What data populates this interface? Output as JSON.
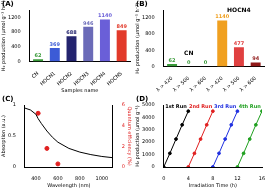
{
  "chart_data": [
    {
      "panel": "(A)",
      "type": "bar",
      "categories": [
        "CN",
        "HOCN1",
        "HOCN2",
        "HOCN3",
        "HOCN4",
        "HOCN5"
      ],
      "values": [
        62,
        369,
        688,
        946,
        1140,
        849
      ],
      "colors": [
        "#3a9a3a",
        "#3c5bd6",
        "#23236e",
        "#6b6bb8",
        "#6a5fd8",
        "#e23a2a"
      ],
      "data_labels": true,
      "grid": false,
      "x_label": "Samples name",
      "y_label": "H₂ production (μmol g⁻¹ h⁻¹)",
      "ylim": [
        0,
        1400
      ],
      "yticks": [
        0,
        400,
        800,
        1200
      ]
    },
    {
      "panel": "(B)",
      "type": "bar",
      "categories": [
        "λ > 420",
        "λ > 500",
        "λ > 600",
        "λ > 420",
        "λ > 500",
        "λ > 600"
      ],
      "values": [
        62,
        0,
        0,
        1140,
        477,
        94
      ],
      "colors": [
        "#3a9a3a",
        "#3a9a3a",
        "#3a9a3a",
        "#f0a020",
        "#e04040",
        "#901818"
      ],
      "annotations": [
        "CN",
        "HOCN4"
      ],
      "data_labels": true,
      "grid": false,
      "y_label": "H₂ production (μmol g⁻¹ h⁻¹)",
      "ylim": [
        0,
        1400
      ],
      "yticks": [
        0,
        400,
        800,
        1200
      ]
    },
    {
      "panel": "(C)",
      "type": "line",
      "grid": false,
      "x_label": "Wavelength (nm)",
      "y_label": "Absorption (a.u.)",
      "y2_label": "Quantum efficiency (%)",
      "xlim": [
        300,
        1100
      ],
      "xticks": [
        400,
        600,
        800,
        1000
      ],
      "ylim": [
        0,
        1
      ],
      "yticks": [
        0,
        0.5,
        1
      ],
      "y2lim": [
        0,
        6
      ],
      "y2ticks": [
        0,
        2,
        4,
        6
      ],
      "series": [
        {
          "color": "#000000",
          "marker": "none",
          "line_style": "solid",
          "x": [
            300,
            350,
            400,
            420,
            450,
            500,
            550,
            600,
            700,
            800,
            900,
            1000,
            1100
          ],
          "values": [
            0.95,
            0.92,
            0.85,
            0.78,
            0.7,
            0.58,
            0.48,
            0.4,
            0.3,
            0.24,
            0.2,
            0.17,
            0.15
          ]
        },
        {
          "type": "scatter",
          "axis": "y2",
          "color": "#e02020",
          "marker": "circle",
          "line_style": "none",
          "x": [
            420,
            500,
            600
          ],
          "values": [
            5.2,
            1.8,
            0.3
          ]
        }
      ]
    },
    {
      "panel": "(D)",
      "type": "line",
      "grid": false,
      "x_label": "Irradiation Time (h)",
      "y_label": "H₂ production (μmol g⁻¹)",
      "xlim": [
        0,
        16
      ],
      "xticks": [
        0,
        4,
        8,
        12,
        16
      ],
      "ylim": [
        0,
        5000
      ],
      "yticks": [
        0,
        1000,
        2000,
        3000,
        4000,
        5000
      ],
      "series": [
        {
          "name": "1st Run",
          "color": "#000000",
          "marker": "circle",
          "line_style": "solid",
          "x": [
            0,
            1,
            2,
            3,
            4
          ],
          "values": [
            0,
            1100,
            2250,
            3400,
            4500
          ]
        },
        {
          "name": "2nd Run",
          "color": "#e02020",
          "marker": "circle",
          "line_style": "solid",
          "x": [
            4,
            5,
            6,
            7,
            8
          ],
          "values": [
            0,
            1100,
            2250,
            3400,
            4500
          ]
        },
        {
          "name": "3rd Run",
          "color": "#2030e0",
          "marker": "circle",
          "line_style": "solid",
          "x": [
            8,
            9,
            10,
            11,
            12
          ],
          "values": [
            0,
            1100,
            2250,
            3400,
            4500
          ]
        },
        {
          "name": "4th Run",
          "color": "#20a020",
          "marker": "circle",
          "line_style": "solid",
          "x": [
            12,
            13,
            14,
            15,
            16
          ],
          "values": [
            0,
            1100,
            2250,
            3400,
            4500
          ]
        }
      ]
    }
  ]
}
